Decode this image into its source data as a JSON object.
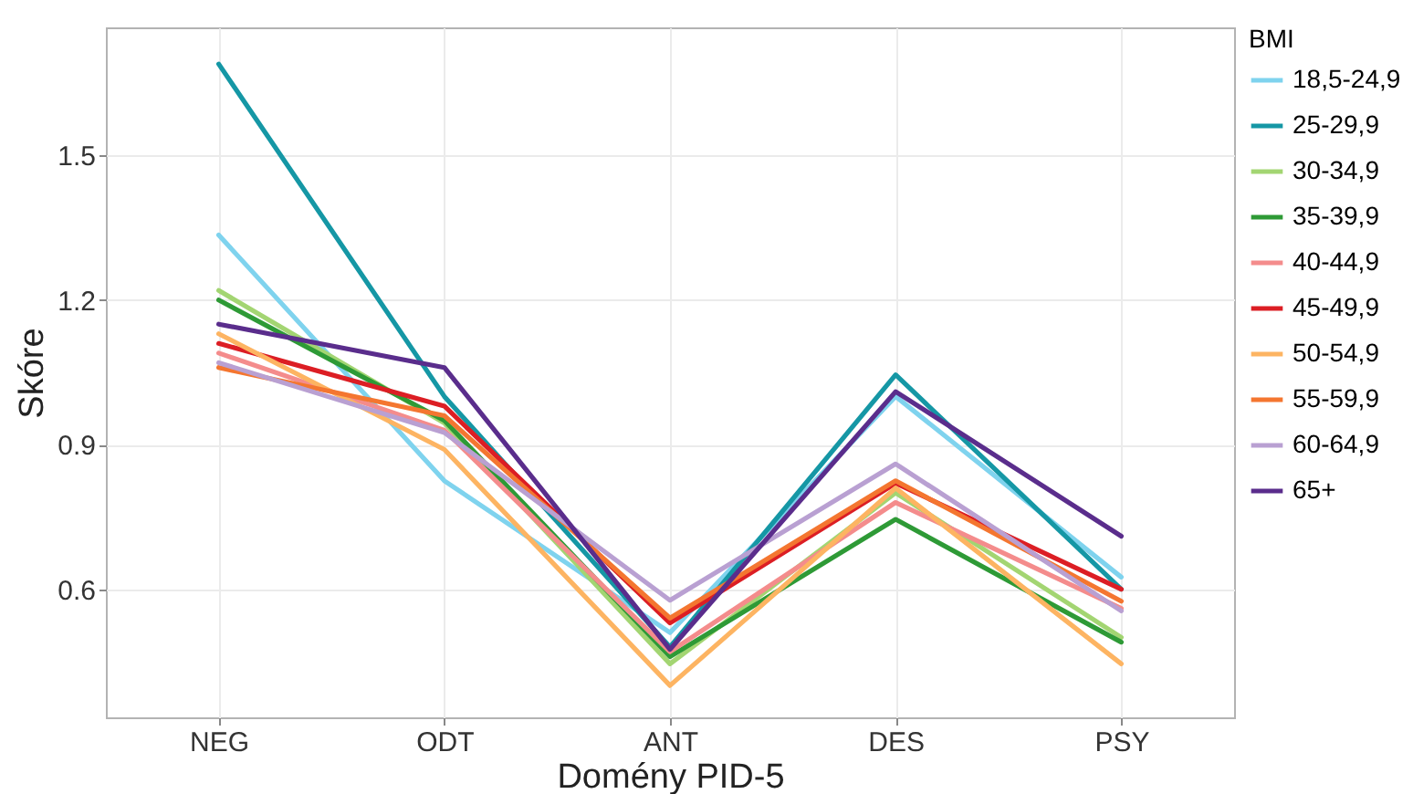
{
  "chart_data": {
    "type": "line",
    "xlabel": "Domény PID-5",
    "ylabel": "Skóre",
    "legend_title": "BMI",
    "legend": "right",
    "grid": true,
    "marker": "none",
    "line_style": "solid",
    "categories": [
      "NEG",
      "ODT",
      "ANT",
      "DES",
      "PSY"
    ],
    "ylim": [
      0.334,
      1.766
    ],
    "yticks": [
      0.6,
      0.9,
      1.2,
      1.5
    ],
    "series": [
      {
        "name": "18,5-24,9",
        "color": "#7fd3ee",
        "values": [
          1.335,
          0.825,
          0.51,
          1.0,
          0.625
        ]
      },
      {
        "name": "25-29,9",
        "color": "#1597a5",
        "values": [
          1.69,
          1.0,
          0.48,
          1.045,
          0.6
        ]
      },
      {
        "name": "30-34,9",
        "color": "#a3d572",
        "values": [
          1.22,
          0.945,
          0.445,
          0.8,
          0.5
        ]
      },
      {
        "name": "35-39,9",
        "color": "#2e9a36",
        "values": [
          1.2,
          0.95,
          0.46,
          0.745,
          0.49
        ]
      },
      {
        "name": "40-44,9",
        "color": "#f48c8c",
        "values": [
          1.09,
          0.93,
          0.47,
          0.78,
          0.56
        ]
      },
      {
        "name": "45-49,9",
        "color": "#dc1e24",
        "values": [
          1.11,
          0.98,
          0.53,
          0.82,
          0.6
        ]
      },
      {
        "name": "50-54,9",
        "color": "#fdb462",
        "values": [
          1.13,
          0.89,
          0.4,
          0.81,
          0.445
        ]
      },
      {
        "name": "55-59,9",
        "color": "#f47630",
        "values": [
          1.06,
          0.96,
          0.54,
          0.825,
          0.575
        ]
      },
      {
        "name": "60-64,9",
        "color": "#b9a0d2",
        "values": [
          1.07,
          0.925,
          0.577,
          0.86,
          0.555
        ]
      },
      {
        "name": "65+",
        "color": "#5a2d8c",
        "values": [
          1.15,
          1.06,
          0.475,
          1.01,
          0.71
        ]
      }
    ]
  }
}
